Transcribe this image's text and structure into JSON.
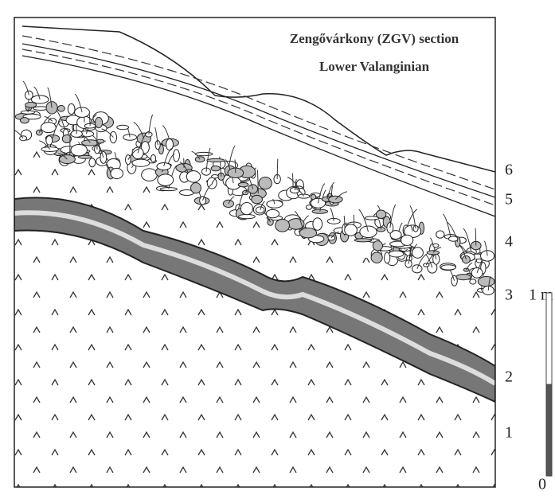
{
  "title": "Zengővárkony (ZGV) section",
  "subtitle": "Lower Valanginian",
  "layers": [
    "6",
    "5",
    "4",
    "3",
    "2",
    "1"
  ],
  "scale": {
    "top": "1 m",
    "bottom": "0"
  }
}
